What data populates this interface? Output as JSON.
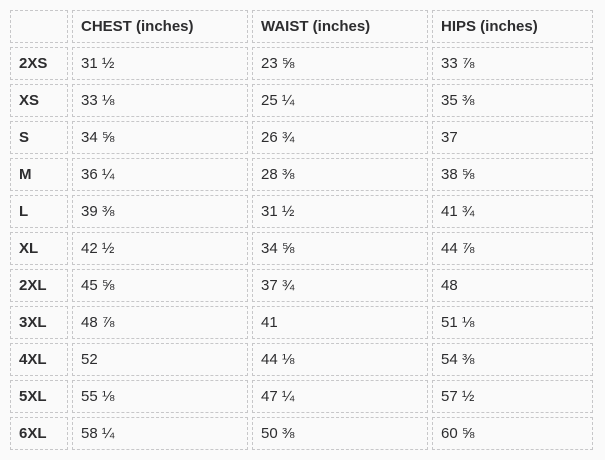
{
  "table": {
    "columns": [
      {
        "key": "size",
        "label": ""
      },
      {
        "key": "chest",
        "label": "CHEST (inches)"
      },
      {
        "key": "waist",
        "label": "WAIST (inches)"
      },
      {
        "key": "hips",
        "label": "HIPS (inches)"
      }
    ],
    "rows": [
      {
        "size": "2XS",
        "chest": "31 ½",
        "waist": "23 ⅝",
        "hips": "33 ⅞"
      },
      {
        "size": "XS",
        "chest": "33 ⅛",
        "waist": "25 ¼",
        "hips": "35 ⅜"
      },
      {
        "size": "S",
        "chest": "34 ⅝",
        "waist": "26 ¾",
        "hips": "37"
      },
      {
        "size": "M",
        "chest": "36 ¼",
        "waist": "28 ⅜",
        "hips": "38 ⅝"
      },
      {
        "size": "L",
        "chest": "39 ⅜",
        "waist": "31 ½",
        "hips": "41 ¾"
      },
      {
        "size": "XL",
        "chest": "42 ½",
        "waist": "34 ⅝",
        "hips": "44 ⅞"
      },
      {
        "size": "2XL",
        "chest": "45 ⅝",
        "waist": "37 ¾",
        "hips": "48"
      },
      {
        "size": "3XL",
        "chest": "48 ⅞",
        "waist": "41",
        "hips": "51 ⅛"
      },
      {
        "size": "4XL",
        "chest": "52",
        "waist": "44 ⅛",
        "hips": "54 ⅜"
      },
      {
        "size": "5XL",
        "chest": "55 ⅛",
        "waist": "47 ¼",
        "hips": "57 ½"
      },
      {
        "size": "6XL",
        "chest": "58 ¼",
        "waist": "50 ⅜",
        "hips": "60 ⅝"
      }
    ],
    "colors": {
      "page_background": "#fafafa",
      "cell_border": "#c7c7c9",
      "text": "#2d2d2f"
    }
  }
}
